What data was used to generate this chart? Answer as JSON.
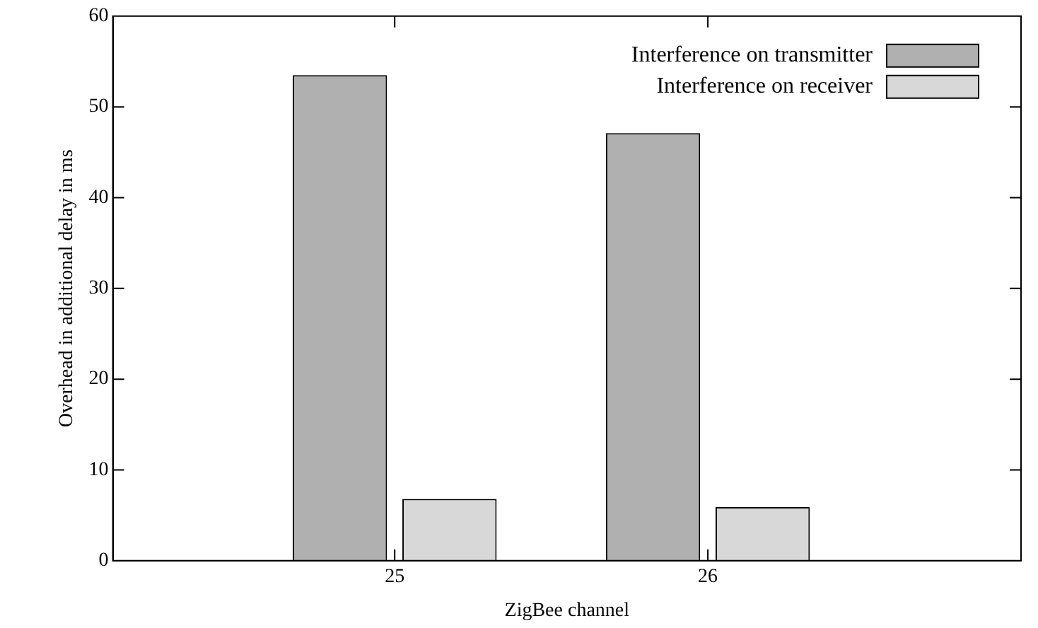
{
  "chart_data": {
    "type": "bar",
    "xlabel": "ZigBee channel",
    "ylabel": "Overhead in additional delay in ms",
    "x": [
      25,
      26
    ],
    "xlim": [
      24.1,
      27
    ],
    "xticks": [
      25,
      26
    ],
    "ylim": [
      0,
      60
    ],
    "yticks": [
      0,
      10,
      20,
      30,
      40,
      50,
      60
    ],
    "series": [
      {
        "name": "Interference on transmitter",
        "color": "#b0b0b0",
        "values": [
          53.5,
          47.1
        ]
      },
      {
        "name": "Interference on receiver",
        "color": "#d8d8d8",
        "values": [
          6.8,
          5.9
        ]
      }
    ],
    "legend": "top right",
    "grid": false
  }
}
